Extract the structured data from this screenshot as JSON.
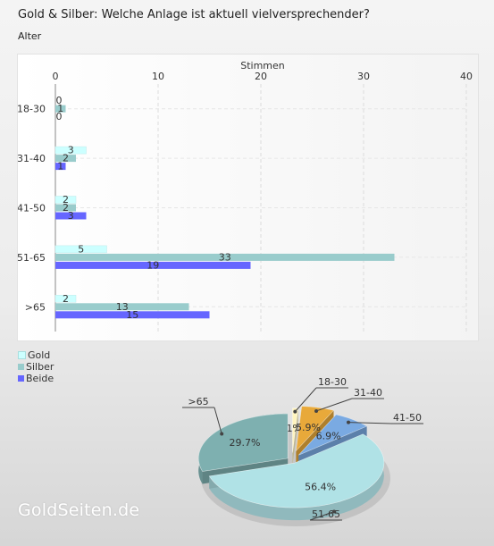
{
  "title": "Gold & Silber: Welche Anlage ist aktuell vielversprechender?",
  "subtitle": "Alter",
  "brand": "GoldSeiten.de",
  "colors": {
    "gold": "#ccffff",
    "silber": "#99cccc",
    "beide": "#6666ff",
    "pie_18_30": "#fff4bf",
    "pie_31_40": "#e8a93a",
    "pie_41_50": "#7aaae2",
    "pie_51_65": "#b0e2e6",
    "pie_over_65": "#7eb0b0"
  },
  "chart_data": [
    {
      "type": "bar",
      "orientation": "horizontal",
      "xlabel": "Stimmen",
      "xlim": [
        0,
        40
      ],
      "xticks": [
        0,
        10,
        20,
        30,
        40
      ],
      "grid": true,
      "legend_position": "bottom-left",
      "categories": [
        "18-30",
        "31-40",
        "41-50",
        "51-65",
        ">65"
      ],
      "series": [
        {
          "name": "Gold",
          "values": [
            0,
            3,
            2,
            5,
            2
          ]
        },
        {
          "name": "Silber",
          "values": [
            1,
            2,
            2,
            33,
            13
          ]
        },
        {
          "name": "Beide",
          "values": [
            0,
            1,
            3,
            19,
            15
          ]
        }
      ]
    },
    {
      "type": "pie",
      "style": "3d-exploded",
      "slices": [
        {
          "label": "18-30",
          "value": 1.0,
          "display": "1%"
        },
        {
          "label": "31-40",
          "value": 5.9,
          "display": "5.9%"
        },
        {
          "label": "41-50",
          "value": 6.9,
          "display": "6.9%"
        },
        {
          "label": "51-65",
          "value": 56.4,
          "display": "56.4%"
        },
        {
          "label": ">65",
          "value": 29.7,
          "display": "29.7%"
        }
      ]
    }
  ]
}
